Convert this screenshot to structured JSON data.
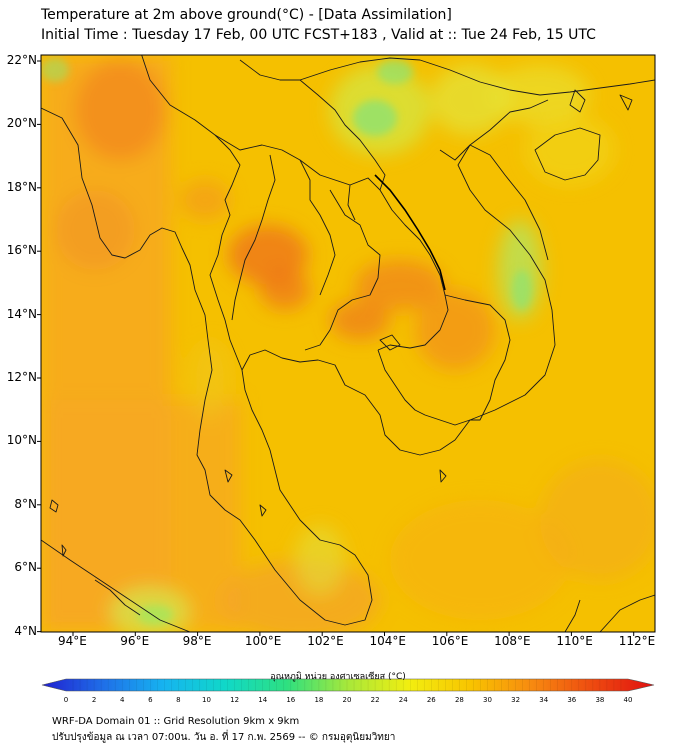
{
  "header": {
    "title_line1": "Temperature at 2m above ground(°C) - [Data Assimilation]",
    "title_line2": "Initial Time : Tuesday 17 Feb, 00 UTC FCST+183 , Valid at :: Tue 24 Feb, 15 UTC"
  },
  "map": {
    "lat_labels": [
      "22°N",
      "20°N",
      "18°N",
      "16°N",
      "14°N",
      "12°N",
      "10°N",
      "8°N",
      "6°N",
      "4°N"
    ],
    "lon_labels": [
      "94°E",
      "96°E",
      "98°E",
      "100°E",
      "102°E",
      "104°E",
      "106°E",
      "108°E",
      "110°E",
      "112°E"
    ],
    "base_color": "#f5c000",
    "border_color": "#1a1a1a"
  },
  "colorbar": {
    "label": "อุณหภูมิ หน่วย องศาเซลเซียส (°C)",
    "ticks": [
      "0",
      "2",
      "4",
      "6",
      "8",
      "10",
      "12",
      "14",
      "16",
      "18",
      "20",
      "22",
      "24",
      "26",
      "28",
      "30",
      "32",
      "34",
      "36",
      "38",
      "40"
    ],
    "min": 0,
    "max": 40,
    "colors": [
      "#2020d0",
      "#1f6fe8",
      "#16b4f0",
      "#10d8c8",
      "#2ee080",
      "#a8e83a",
      "#f2ee10",
      "#f8c400",
      "#f78a10",
      "#ee4a10",
      "#e01010"
    ]
  },
  "footer": {
    "line1": "WRF-DA Domain 01 :: Grid Resolution 9km x 9km",
    "line2": "ปรับปรุงข้อมูล ณ เวลา 07:00น. วัน อ. ที่ 17 ก.พ. 2569 -- © กรมอุตุนิยมวิทยา"
  }
}
